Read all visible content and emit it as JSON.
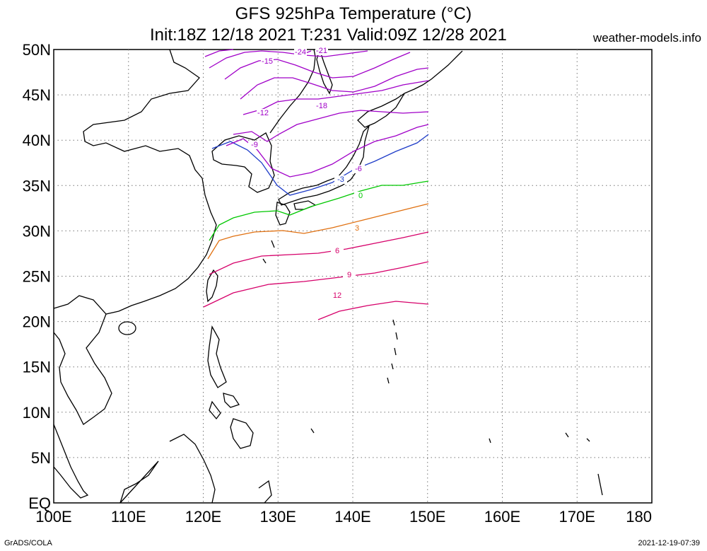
{
  "header": {
    "title": "GFS 925hPa Temperature (°C)",
    "subtitle": "Init:18Z 12/18 2021 T:231 Valid:09Z 12/28 2021",
    "site": "weather-models.info"
  },
  "footer": {
    "credit": "GrADS/COLA",
    "timestamp": "2021-12-19-07:39"
  },
  "map": {
    "lat_labels": [
      "50N",
      "45N",
      "40N",
      "35N",
      "30N",
      "25N",
      "20N",
      "15N",
      "10N",
      "5N",
      "EQ"
    ],
    "lon_labels": [
      "100E",
      "110E",
      "120E",
      "130E",
      "140E",
      "150E",
      "160E",
      "170E",
      "180"
    ],
    "lon_range": [
      100,
      180
    ],
    "lat_range": [
      0,
      50
    ],
    "data_lon_range": [
      120,
      150
    ],
    "grid": "dotted",
    "contour_interval": 3,
    "contours": [
      {
        "value": 12,
        "label": "12",
        "color": "#d6006a"
      },
      {
        "value": 9,
        "label": "9",
        "color": "#d6006a"
      },
      {
        "value": 6,
        "label": "6",
        "color": "#d6006a"
      },
      {
        "value": 3,
        "label": "3",
        "color": "#e07010"
      },
      {
        "value": 0,
        "label": "0",
        "color": "#00c800"
      },
      {
        "value": -3,
        "label": "-3",
        "color": "#1e3cc8"
      },
      {
        "value": -6,
        "label": "-6",
        "color": "#a000c8"
      },
      {
        "value": -9,
        "label": "-9",
        "color": "#a000c8"
      },
      {
        "value": -12,
        "label": "-12",
        "color": "#a000c8"
      },
      {
        "value": -15,
        "label": "-15",
        "color": "#a000c8"
      },
      {
        "value": -18,
        "label": "-18",
        "color": "#a000c8"
      },
      {
        "value": -21,
        "label": "-21",
        "color": "#a000c8"
      },
      {
        "value": -24,
        "label": "-24",
        "color": "#a000c8"
      }
    ]
  }
}
